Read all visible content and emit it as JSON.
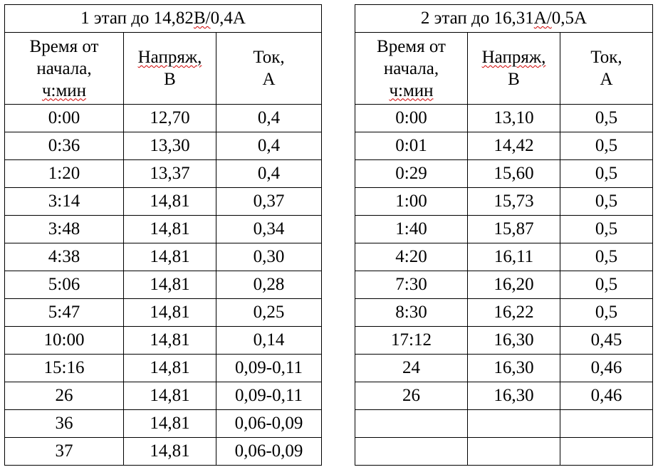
{
  "tables": [
    {
      "title_pre": "1 этап до 14,82",
      "title_mark": "В/",
      "title_post": "0,4А",
      "headers": {
        "time": [
          "Время от",
          "начала,",
          "ч:мин"
        ],
        "voltage": [
          "Напряж,",
          "В"
        ],
        "current": [
          "Ток,",
          "А"
        ]
      },
      "rows": [
        {
          "time": "0:00",
          "voltage": "12,70",
          "current": "0,4"
        },
        {
          "time": "0:36",
          "voltage": "13,30",
          "current": "0,4"
        },
        {
          "time": "1:20",
          "voltage": "13,37",
          "current": "0,4"
        },
        {
          "time": "3:14",
          "voltage": "14,81",
          "current": "0,37"
        },
        {
          "time": "3:48",
          "voltage": "14,81",
          "current": "0,34"
        },
        {
          "time": "4:38",
          "voltage": "14,81",
          "current": "0,30"
        },
        {
          "time": "5:06",
          "voltage": "14,81",
          "current": "0,28"
        },
        {
          "time": "5:47",
          "voltage": "14,81",
          "current": "0,25"
        },
        {
          "time": "10:00",
          "voltage": "14,81",
          "current": "0,14"
        },
        {
          "time": "15:16",
          "voltage": "14,81",
          "current": "0,09-0,11"
        },
        {
          "time": "26",
          "voltage": "14,81",
          "current": "0,09-0,11"
        },
        {
          "time": "36",
          "voltage": "14,81",
          "current": "0,06-0,09"
        },
        {
          "time": "37",
          "voltage": "14,81",
          "current": "0,06-0,09"
        }
      ]
    },
    {
      "title_pre": "2 этап до 16,31",
      "title_mark": "А/",
      "title_post": "0,5А",
      "headers": {
        "time": [
          "Время от",
          "начала,",
          "ч:мин"
        ],
        "voltage": [
          "Напряж,",
          "В"
        ],
        "current": [
          "Ток,",
          "А"
        ]
      },
      "rows": [
        {
          "time": "0:00",
          "voltage": "13,10",
          "current": "0,5"
        },
        {
          "time": "0:01",
          "voltage": "14,42",
          "current": "0,5"
        },
        {
          "time": "0:29",
          "voltage": "15,60",
          "current": "0,5"
        },
        {
          "time": "1:00",
          "voltage": "15,73",
          "current": "0,5"
        },
        {
          "time": "1:40",
          "voltage": "15,87",
          "current": "0,5"
        },
        {
          "time": "4:20",
          "voltage": "16,11",
          "current": "0,5"
        },
        {
          "time": "7:30",
          "voltage": "16,20",
          "current": "0,5"
        },
        {
          "time": "8:30",
          "voltage": "16,22",
          "current": "0,5"
        },
        {
          "time": "17:12",
          "voltage": "16,30",
          "current": "0,45"
        },
        {
          "time": "24",
          "voltage": "16,30",
          "current": "0,46"
        },
        {
          "time": "26",
          "voltage": "16,30",
          "current": "0,46"
        },
        {
          "time": "",
          "voltage": "",
          "current": ""
        },
        {
          "time": "",
          "voltage": "",
          "current": ""
        }
      ]
    }
  ]
}
